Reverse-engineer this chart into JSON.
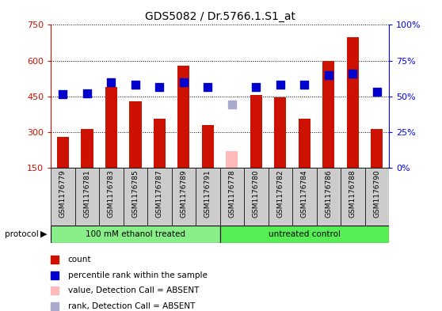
{
  "title": "GDS5082 / Dr.5766.1.S1_at",
  "samples": [
    "GSM1176779",
    "GSM1176781",
    "GSM1176783",
    "GSM1176785",
    "GSM1176787",
    "GSM1176789",
    "GSM1176791",
    "GSM1176778",
    "GSM1176780",
    "GSM1176782",
    "GSM1176784",
    "GSM1176786",
    "GSM1176788",
    "GSM1176790"
  ],
  "counts": [
    280,
    315,
    490,
    430,
    355,
    580,
    330,
    220,
    455,
    445,
    355,
    600,
    700,
    315
  ],
  "ranks": [
    460,
    462,
    510,
    500,
    488,
    510,
    490,
    415,
    488,
    500,
    498,
    540,
    545,
    468
  ],
  "absent_mask": [
    false,
    false,
    false,
    false,
    false,
    false,
    false,
    true,
    false,
    false,
    false,
    false,
    false,
    false
  ],
  "absent_rank_mask": [
    false,
    false,
    false,
    false,
    false,
    false,
    false,
    true,
    false,
    false,
    false,
    false,
    false,
    false
  ],
  "group1_count": 7,
  "group2_count": 7,
  "group1_label": "100 mM ethanol treated",
  "group2_label": "untreated control",
  "protocol_label": "protocol",
  "left_ylim": [
    150,
    750
  ],
  "left_yticks": [
    150,
    300,
    450,
    600,
    750
  ],
  "right_ylim": [
    0,
    100
  ],
  "right_yticks": [
    0,
    25,
    50,
    75,
    100
  ],
  "bar_color_present": "#cc1100",
  "bar_color_absent": "#ffbbbb",
  "rank_color_present": "#0000cc",
  "rank_color_absent": "#aaaacc",
  "group1_bg": "#88ee88",
  "group2_bg": "#55ee55",
  "xlabel_bg": "#cccccc",
  "legend_items": [
    {
      "label": "count",
      "color": "#cc1100"
    },
    {
      "label": "percentile rank within the sample",
      "color": "#0000cc"
    },
    {
      "label": "value, Detection Call = ABSENT",
      "color": "#ffbbbb"
    },
    {
      "label": "rank, Detection Call = ABSENT",
      "color": "#aaaacc"
    }
  ]
}
